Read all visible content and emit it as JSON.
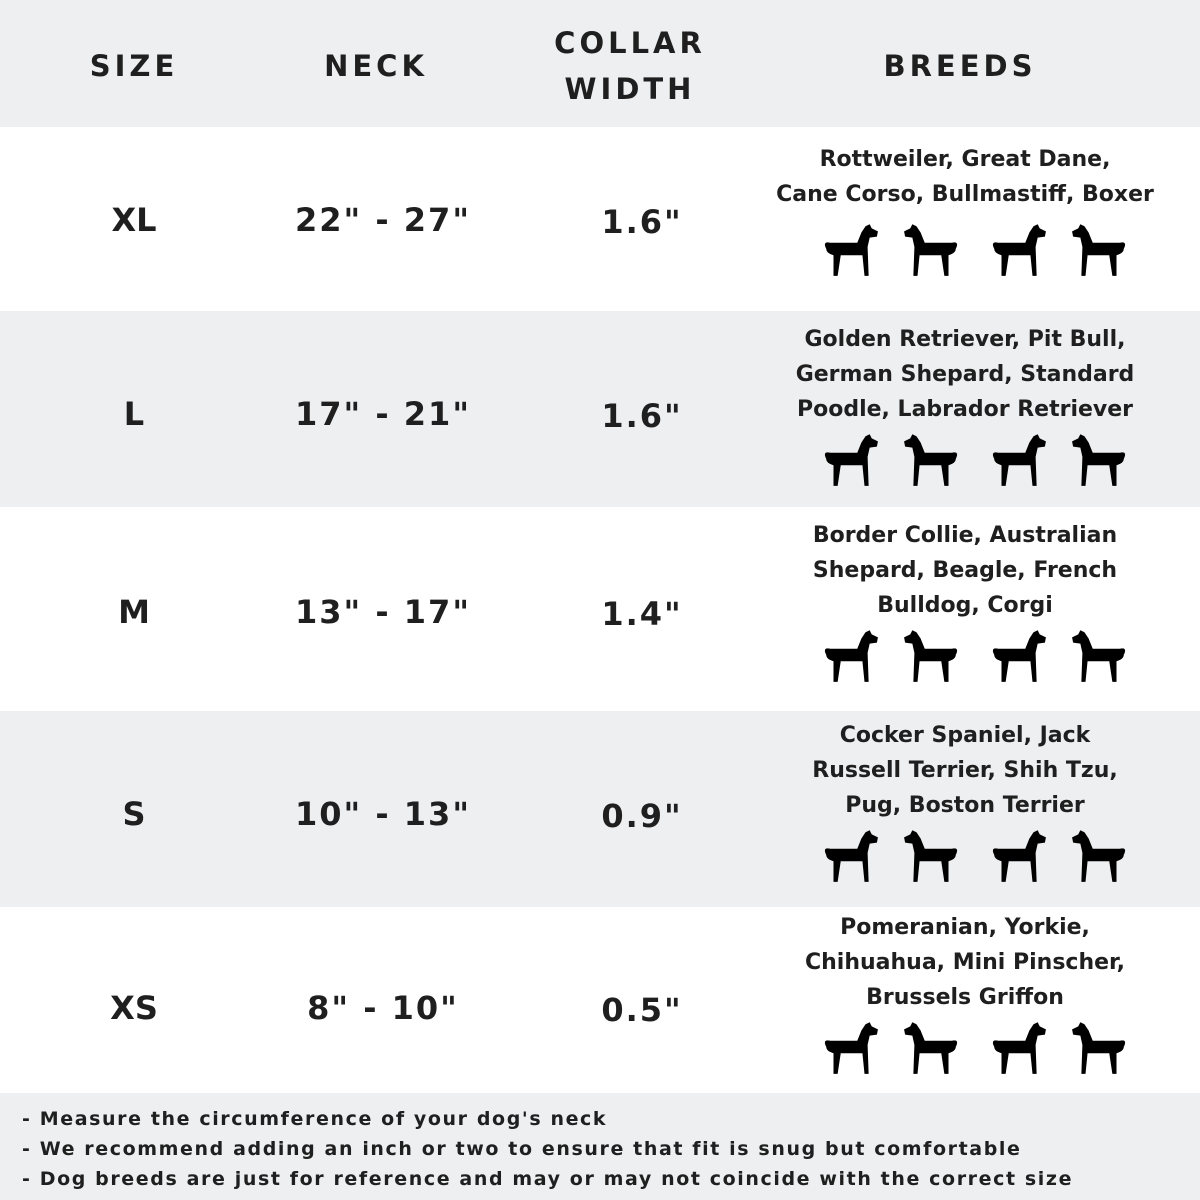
{
  "header": {
    "size": "SIZE",
    "neck": "NECK",
    "collar_width": "COLLAR\nWIDTH",
    "breeds": "BREEDS"
  },
  "rows": [
    {
      "size": "XL",
      "neck": "22\" - 27\"",
      "collar": "1.6\"",
      "breeds": "Rottweiler, Great Dane,\nCane Corso, Bullmastiff, Boxer",
      "icons": [
        "rottweiler-icon",
        "great-dane-icon",
        "cane-corso-icon",
        "bullmastiff-icon"
      ]
    },
    {
      "size": "L",
      "neck": "17\" - 21\"",
      "collar": "1.6\"",
      "breeds": "Golden Retriever, Pit Bull,\nGerman Shepard, Standard\nPoodle, Labrador Retriever",
      "icons": [
        "golden-retriever-icon",
        "labrador-icon",
        "poodle-icon",
        "german-shepherd-icon"
      ]
    },
    {
      "size": "M",
      "neck": "13\" - 17\"",
      "collar": "1.4\"",
      "breeds": "Border Collie, Australian\nShepard, Beagle, French\nBulldog, Corgi",
      "icons": [
        "border-collie-icon",
        "beagle-icon",
        "french-bulldog-icon",
        "corgi-icon"
      ]
    },
    {
      "size": "S",
      "neck": "10\" - 13\"",
      "collar": "0.9\"",
      "breeds": "Cocker Spaniel, Jack\nRussell Terrier, Shih Tzu,\nPug, Boston Terrier",
      "icons": [
        "cocker-spaniel-icon",
        "jack-russell-icon",
        "shih-tzu-icon",
        "pug-icon"
      ]
    },
    {
      "size": "XS",
      "neck": "8\" - 10\"",
      "collar": "0.5\"",
      "breeds": "Pomeranian, Yorkie,\nChihuahua, Mini Pinscher,\nBrussels Griffon",
      "icons": [
        "pomeranian-icon",
        "yorkie-icon",
        "chihuahua-icon",
        "mini-pinscher-icon"
      ]
    }
  ],
  "notes": [
    "- Measure the circumference of your dog's neck",
    "- We recommend adding an inch or two to ensure that fit is snug but comfortable",
    "- Dog breeds are just for reference and may or may not coincide with the correct size"
  ],
  "colors": {
    "band_gray": "#eeeff0",
    "text": "#1f1f1f"
  }
}
